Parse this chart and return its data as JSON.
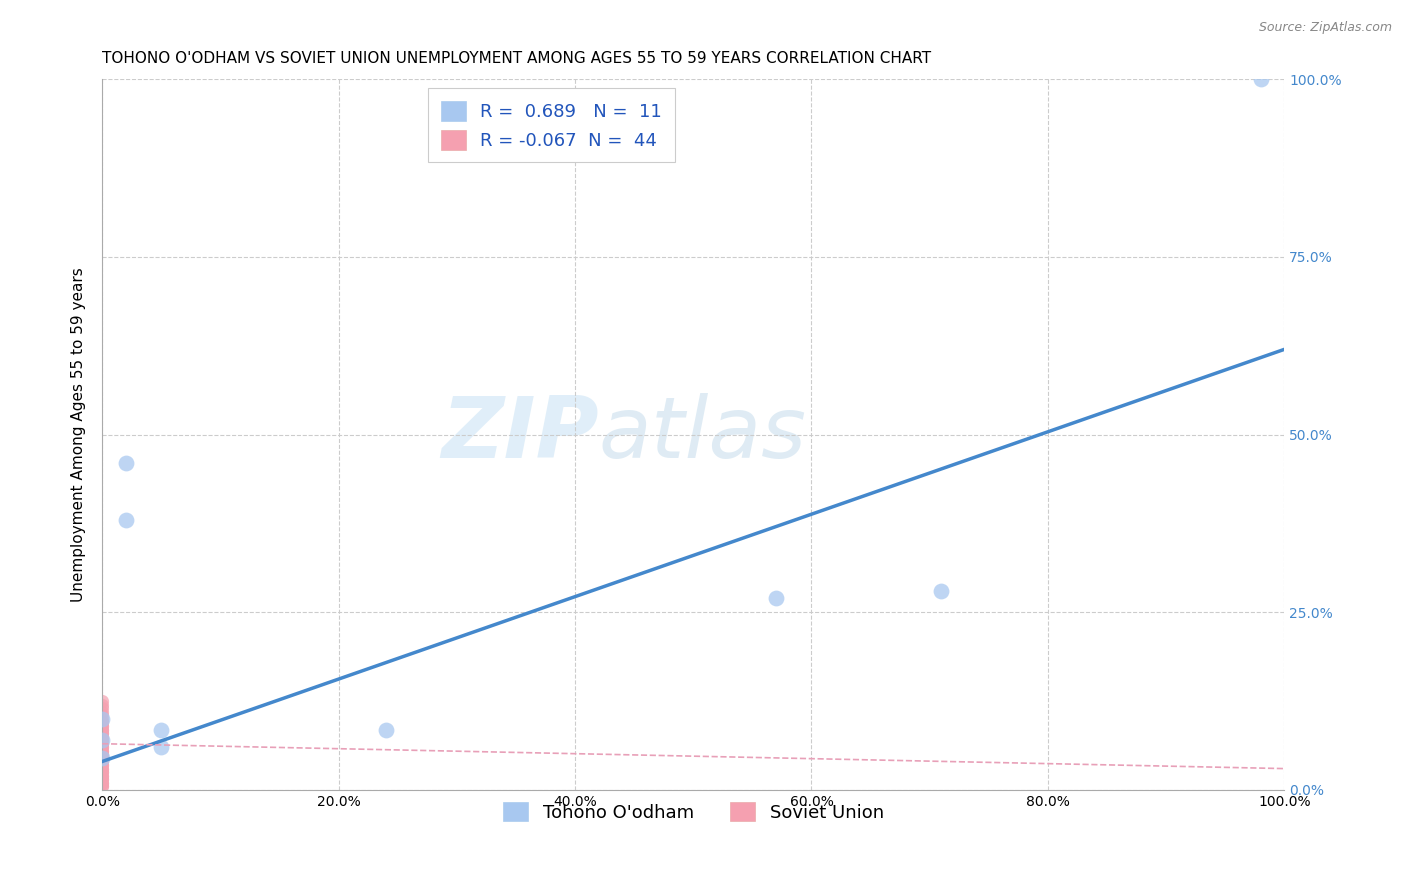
{
  "title": "TOHONO O'ODHAM VS SOVIET UNION UNEMPLOYMENT AMONG AGES 55 TO 59 YEARS CORRELATION CHART",
  "source": "Source: ZipAtlas.com",
  "ylabel": "Unemployment Among Ages 55 to 59 years",
  "xlim": [
    0,
    1.0
  ],
  "ylim": [
    0,
    1.0
  ],
  "xtick_labels": [
    "0.0%",
    "20.0%",
    "40.0%",
    "60.0%",
    "80.0%",
    "100.0%"
  ],
  "xtick_vals": [
    0,
    0.2,
    0.4,
    0.6,
    0.8,
    1.0
  ],
  "ytick_labels_right": [
    "0.0%",
    "25.0%",
    "50.0%",
    "75.0%",
    "100.0%"
  ],
  "ytick_vals": [
    0,
    0.25,
    0.5,
    0.75,
    1.0
  ],
  "grid_color": "#cccccc",
  "background_color": "#ffffff",
  "tohono_color": "#a8c8f0",
  "soviet_color": "#f5a0b0",
  "trend_tohono_color": "#4488cc",
  "trend_soviet_color": "#e8a0b8",
  "tohono_R": 0.689,
  "tohono_N": 11,
  "soviet_R": -0.067,
  "soviet_N": 44,
  "tohono_scatter_x": [
    0.0,
    0.02,
    0.02,
    0.0,
    0.0,
    0.05,
    0.05,
    0.24,
    0.57,
    0.71,
    0.98
  ],
  "tohono_scatter_y": [
    0.045,
    0.46,
    0.38,
    0.07,
    0.1,
    0.085,
    0.06,
    0.085,
    0.27,
    0.28,
    1.0
  ],
  "soviet_scatter_x": [
    0.0,
    0.0,
    0.0,
    0.0,
    0.0,
    0.0,
    0.0,
    0.0,
    0.0,
    0.0,
    0.0,
    0.0,
    0.0,
    0.0,
    0.0,
    0.0,
    0.0,
    0.0,
    0.0,
    0.0,
    0.0,
    0.0,
    0.0,
    0.0,
    0.0,
    0.0,
    0.0,
    0.0,
    0.0,
    0.0,
    0.0,
    0.0,
    0.0,
    0.0,
    0.0,
    0.0,
    0.0,
    0.0,
    0.0,
    0.0,
    0.0,
    0.0,
    0.0,
    0.0
  ],
  "soviet_scatter_y": [
    0.005,
    0.01,
    0.015,
    0.02,
    0.025,
    0.03,
    0.035,
    0.04,
    0.045,
    0.05,
    0.055,
    0.06,
    0.065,
    0.07,
    0.075,
    0.08,
    0.085,
    0.09,
    0.095,
    0.1,
    0.105,
    0.11,
    0.115,
    0.12,
    0.125,
    0.005,
    0.01,
    0.015,
    0.02,
    0.025,
    0.03,
    0.035,
    0.04,
    0.045,
    0.05,
    0.055,
    0.06,
    0.065,
    0.07,
    0.075,
    0.08,
    0.085,
    0.09,
    0.095
  ],
  "tohono_trend_x": [
    0.0,
    1.0
  ],
  "tohono_trend_y_start": 0.04,
  "tohono_trend_y_end": 0.62,
  "soviet_trend_x": [
    0.0,
    1.0
  ],
  "soviet_trend_y_start": 0.065,
  "soviet_trend_y_end": 0.03,
  "watermark_zip": "ZIP",
  "watermark_atlas": "atlas",
  "title_fontsize": 11,
  "axis_label_fontsize": 11,
  "tick_fontsize": 10,
  "legend_fontsize": 13,
  "marker_size_tohono": 130,
  "marker_size_soviet": 90
}
